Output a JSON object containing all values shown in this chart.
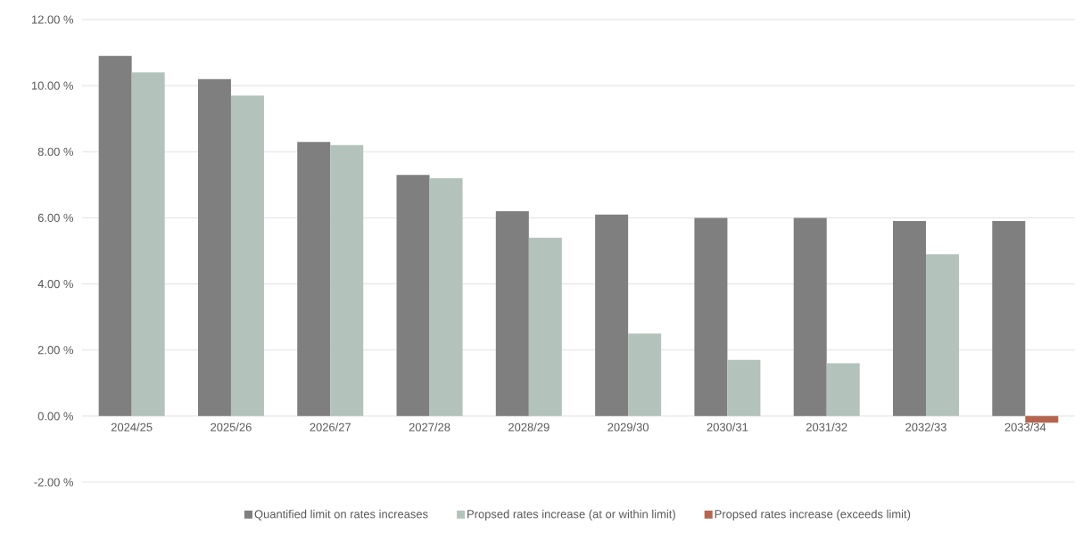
{
  "chart_data": {
    "type": "bar",
    "categories": [
      "2024/25",
      "2025/26",
      "2026/27",
      "2027/28",
      "2028/29",
      "2029/30",
      "2030/31",
      "2031/32",
      "2032/33",
      "2033/34"
    ],
    "series": [
      {
        "name": "Quantified limit on rates increases",
        "color": "#7f7f7f",
        "values": [
          10.9,
          10.2,
          8.3,
          7.3,
          6.2,
          6.1,
          6.0,
          6.0,
          5.9,
          5.9
        ]
      },
      {
        "name": "Propsed rates increase (at or within limit)",
        "color": "#b3c3bb",
        "values": [
          10.4,
          9.7,
          8.2,
          7.2,
          5.4,
          2.5,
          1.7,
          1.6,
          4.9,
          null
        ]
      },
      {
        "name": "Propsed rates increase (exceeds limit)",
        "color": "#b5654f",
        "values": [
          null,
          null,
          null,
          null,
          null,
          null,
          null,
          null,
          null,
          -0.2
        ]
      }
    ],
    "ylim": [
      -2,
      12
    ],
    "yticks": [
      {
        "value": -2,
        "label": "-2.00 %"
      },
      {
        "value": 0,
        "label": "0.00 %"
      },
      {
        "value": 2,
        "label": "2.00 %"
      },
      {
        "value": 4,
        "label": "4.00 %"
      },
      {
        "value": 6,
        "label": "6.00 %"
      },
      {
        "value": 8,
        "label": "8.00 %"
      },
      {
        "value": 10,
        "label": "10.00 %"
      },
      {
        "value": 12,
        "label": "12.00 %"
      }
    ],
    "grid": "y",
    "legend": "bottom"
  }
}
